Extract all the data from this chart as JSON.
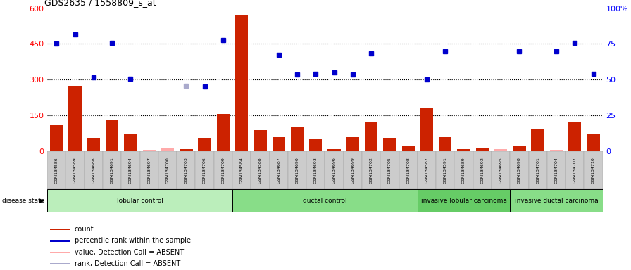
{
  "title": "GDS2635 / 1558809_s_at",
  "samples": [
    "GSM134586",
    "GSM134589",
    "GSM134688",
    "GSM134691",
    "GSM134694",
    "GSM134697",
    "GSM134700",
    "GSM134703",
    "GSM134706",
    "GSM134709",
    "GSM134584",
    "GSM134588",
    "GSM134687",
    "GSM134690",
    "GSM134693",
    "GSM134696",
    "GSM134699",
    "GSM134702",
    "GSM134705",
    "GSM134708",
    "GSM134587",
    "GSM134591",
    "GSM134689",
    "GSM134692",
    "GSM134695",
    "GSM134698",
    "GSM134701",
    "GSM134704",
    "GSM134707",
    "GSM134710"
  ],
  "count": [
    110,
    270,
    55,
    130,
    75,
    5,
    15,
    10,
    55,
    155,
    570,
    90,
    60,
    100,
    50,
    10,
    60,
    120,
    55,
    20,
    180,
    60,
    10,
    15,
    10,
    20,
    95,
    5,
    120,
    75
  ],
  "count_absent": [
    false,
    false,
    false,
    false,
    false,
    true,
    true,
    false,
    false,
    false,
    false,
    false,
    false,
    false,
    false,
    false,
    false,
    false,
    false,
    false,
    false,
    false,
    false,
    false,
    true,
    false,
    false,
    true,
    false,
    false
  ],
  "percentile_rank": [
    450,
    490,
    310,
    455,
    305,
    null,
    null,
    275,
    270,
    465,
    null,
    null,
    405,
    320,
    325,
    330,
    320,
    410,
    null,
    null,
    300,
    420,
    null,
    null,
    null,
    420,
    null,
    420,
    455,
    325
  ],
  "percentile_absent": [
    false,
    false,
    false,
    false,
    false,
    false,
    false,
    true,
    false,
    false,
    false,
    false,
    false,
    false,
    false,
    false,
    false,
    false,
    true,
    true,
    false,
    false,
    true,
    true,
    true,
    false,
    true,
    false,
    false,
    false
  ],
  "groups": [
    {
      "label": "lobular control",
      "start": 0,
      "end": 10,
      "color": "#bbeebb"
    },
    {
      "label": "ductal control",
      "start": 10,
      "end": 20,
      "color": "#88dd88"
    },
    {
      "label": "invasive lobular carcinoma",
      "start": 20,
      "end": 25,
      "color": "#66cc66"
    },
    {
      "label": "invasive ductal carcinoma",
      "start": 25,
      "end": 30,
      "color": "#88dd88"
    }
  ],
  "ylim_left": [
    0,
    600
  ],
  "ylim_right": [
    0,
    100
  ],
  "yticks_left": [
    0,
    150,
    300,
    450,
    600
  ],
  "yticks_right": [
    0,
    25,
    50,
    75,
    100
  ],
  "bar_color": "#cc2200",
  "bar_absent_color": "#ffaaaa",
  "dot_color": "#0000cc",
  "dot_absent_color": "#aaaacc",
  "legend_items": [
    {
      "label": "count",
      "color": "#cc2200"
    },
    {
      "label": "percentile rank within the sample",
      "color": "#0000cc"
    },
    {
      "label": "value, Detection Call = ABSENT",
      "color": "#ffaaaa"
    },
    {
      "label": "rank, Detection Call = ABSENT",
      "color": "#aaaacc"
    }
  ]
}
